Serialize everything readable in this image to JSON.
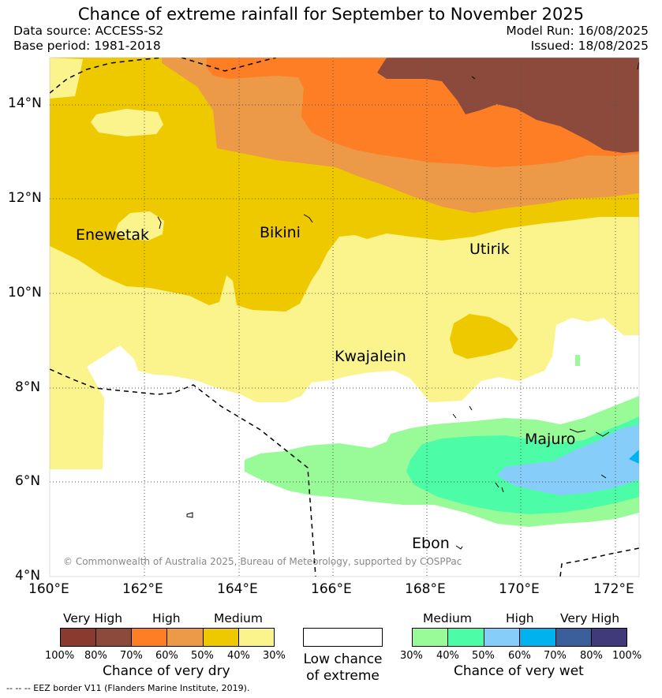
{
  "title": "Chance of extreme rainfall for September to November 2025",
  "data_source": "Data source: ACCESS-S2",
  "base_period": "Base period: 1981-2018",
  "model_run": "Model Run: 16/08/2025",
  "issued": "Issued: 18/08/2025",
  "places": [
    "Enewetak",
    "Bikini",
    "Utirik",
    "Kwajalein",
    "Majuro",
    "Ebon"
  ],
  "lat_ticks": [
    "14°N",
    "12°N",
    "10°N",
    "8°N",
    "6°N",
    "4°N"
  ],
  "lon_ticks": [
    "160°E",
    "162°E",
    "164°E",
    "166°E",
    "168°E",
    "170°E",
    "172°E"
  ],
  "copyright": "© Commonwealth of Australia 2025, Bureau of Meteorology, supported by COSPPac",
  "colors": {
    "dry_100_80": "#8b3a2f",
    "dry_80_70": "#8b4a3b",
    "dry_70_60": "#fd7e25",
    "dry_60_50": "#ec9a48",
    "dry_50_40": "#eec900",
    "dry_40_30": "#fbf48c",
    "low_chance": "#ffffff",
    "wet_30_40": "#98fb98",
    "wet_40_50": "#4dfca6",
    "wet_50_60": "#87cdfa",
    "wet_60_70": "#00b3ef",
    "wet_70_80": "#3a5f9b",
    "wet_80_100": "#413a7a"
  },
  "dry_legend": {
    "levels": [
      "Very High",
      "High",
      "Medium"
    ],
    "ticks": [
      "100%",
      "80%",
      "70%",
      "60%",
      "50%",
      "40%",
      "30%"
    ],
    "title": "Chance of very dry"
  },
  "low_legend": {
    "line1": "Low chance",
    "line2": "of extreme"
  },
  "wet_legend": {
    "levels": [
      "Medium",
      "High",
      "Very High"
    ],
    "ticks": [
      "30%",
      "40%",
      "50%",
      "60%",
      "70%",
      "80%",
      "100%"
    ],
    "title": "Chance of very wet"
  },
  "footnote": "-- -- -- EEZ border V11 (Flanders Marine Institute, 2019)."
}
